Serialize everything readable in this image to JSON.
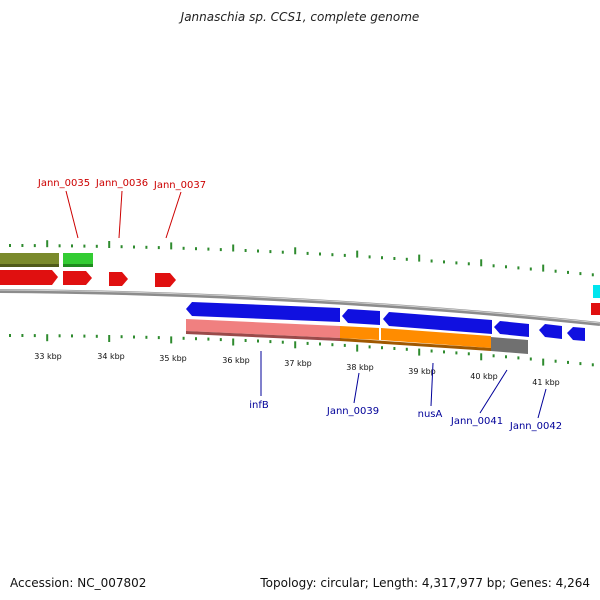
{
  "title": "Jannaschia sp. CCS1, complete genome",
  "footer": {
    "accession": "Accession: NC_007802",
    "summary": "Topology: circular; Length: 4,317,977 bp; Genes: 4,264"
  },
  "colors": {
    "tick": "#2e8b2e",
    "top_label": "#cc0000",
    "bottom_label": "#000099",
    "backbone": "#8c8c8c",
    "forward_gene": "#e01010",
    "reverse_gene": "#1010e0"
  },
  "kbp_labels": [
    "33 kbp",
    "34 kbp",
    "35 kbp",
    "36 kbp",
    "37 kbp",
    "38 kbp",
    "39 kbp",
    "40 kbp",
    "41 kbp"
  ],
  "top_labels": [
    "Jann_0035",
    "Jann_0036",
    "Jann_0037"
  ],
  "bottom_labels": [
    "infB",
    "Jann_0039",
    "nusA",
    "Jann_0041",
    "Jann_0042"
  ]
}
